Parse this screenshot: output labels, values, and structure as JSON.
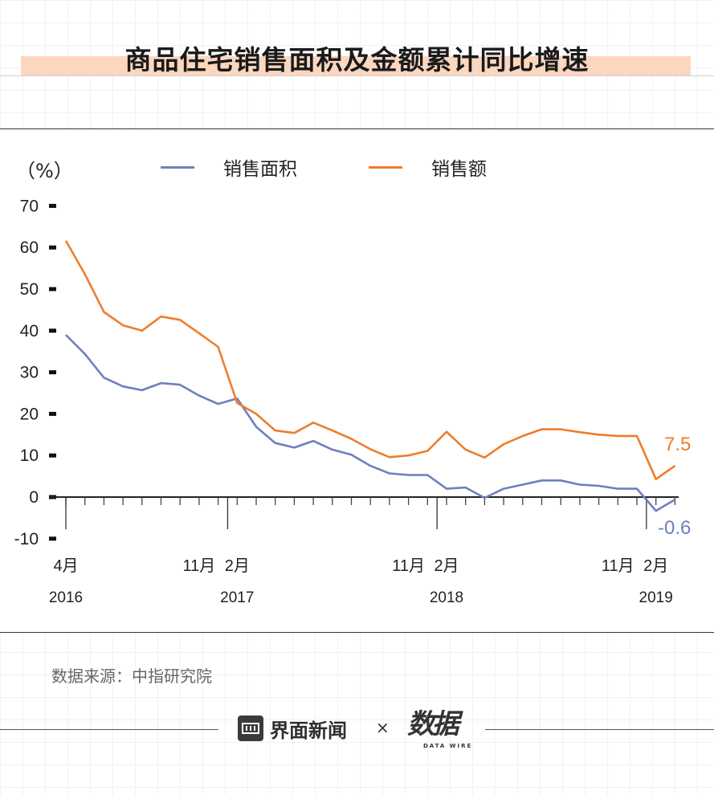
{
  "title": "商品住宅销售面积及金额累计同比增速",
  "source": "数据来源：中指研究院",
  "brand": {
    "name": "界面新闻",
    "separator": "×",
    "partner_mark": "数据",
    "partner_sub": "DATA WIRE"
  },
  "chart_data": {
    "type": "line",
    "unit_label": "（%）",
    "ylim": [
      -10,
      70
    ],
    "yticks": [
      70,
      60,
      50,
      40,
      30,
      20,
      10,
      0,
      -10
    ],
    "x": [
      "2016-04",
      "2016-05",
      "2016-06",
      "2016-07",
      "2016-08",
      "2016-09",
      "2016-10",
      "2016-11",
      "2016-12",
      "2017-02",
      "2017-03",
      "2017-04",
      "2017-05",
      "2017-06",
      "2017-07",
      "2017-08",
      "2017-09",
      "2017-10",
      "2017-11",
      "2017-12",
      "2018-02",
      "2018-03",
      "2018-04",
      "2018-05",
      "2018-06",
      "2018-07",
      "2018-08",
      "2018-09",
      "2018-10",
      "2018-11",
      "2018-12",
      "2019-02",
      "2019-03"
    ],
    "x_tick_labels": [
      {
        "index": 0,
        "month": "4月",
        "year": "2016"
      },
      {
        "index": 7,
        "month": "11月",
        "year": ""
      },
      {
        "index": 9,
        "month": "2月",
        "year": "2017"
      },
      {
        "index": 18,
        "month": "11月",
        "year": ""
      },
      {
        "index": 20,
        "month": "2月",
        "year": "2018"
      },
      {
        "index": 29,
        "month": "11月",
        "year": ""
      },
      {
        "index": 31,
        "month": "2月",
        "year": "2019"
      }
    ],
    "series": [
      {
        "name": "销售面积",
        "color": "#6f7fbf",
        "values": [
          39.0,
          34.4,
          28.7,
          26.6,
          25.7,
          27.4,
          27.0,
          24.4,
          22.4,
          23.7,
          16.9,
          13.0,
          11.9,
          13.5,
          11.4,
          10.2,
          7.5,
          5.7,
          5.3,
          5.3,
          2.0,
          2.3,
          -0.2,
          2.0,
          3.0,
          4.0,
          4.0,
          3.0,
          2.7,
          2.0,
          2.0,
          -3.3,
          -0.6
        ],
        "end_label": "-0.6"
      },
      {
        "name": "销售额",
        "color": "#ee7d2d",
        "values": [
          61.6,
          53.6,
          44.5,
          41.3,
          40.0,
          43.4,
          42.6,
          39.4,
          36.1,
          22.6,
          20.0,
          16.0,
          15.4,
          17.9,
          16.0,
          14.0,
          11.5,
          9.6,
          10.0,
          11.1,
          15.7,
          11.4,
          9.5,
          12.7,
          14.7,
          16.3,
          16.3,
          15.6,
          15.0,
          14.7,
          14.7,
          4.3,
          7.5
        ],
        "end_label": "7.5"
      }
    ]
  }
}
